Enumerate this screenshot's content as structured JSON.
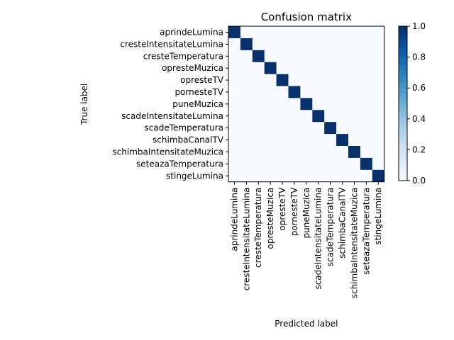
{
  "chart_data": {
    "type": "heatmap",
    "title": "Confusion matrix",
    "xlabel": "Predicted label",
    "ylabel": "True label",
    "labels": [
      "aprindeLumina",
      "cresteIntensitateLumina",
      "cresteTemperatura",
      "opresteMuzica",
      "opresteTV",
      "pornesteTV",
      "puneMuzica",
      "scadeIntensitateLumina",
      "scadeTemperatura",
      "schimbaCanalTV",
      "schimbaIntensitateMuzica",
      "seteazaTemperatura",
      "stingeLumina"
    ],
    "matrix": [
      [
        1,
        0,
        0,
        0,
        0,
        0,
        0,
        0,
        0,
        0,
        0,
        0,
        0
      ],
      [
        0,
        1,
        0,
        0,
        0,
        0,
        0,
        0,
        0,
        0,
        0,
        0,
        0
      ],
      [
        0,
        0,
        1,
        0,
        0,
        0,
        0,
        0,
        0,
        0,
        0,
        0,
        0
      ],
      [
        0,
        0,
        0,
        1,
        0,
        0,
        0,
        0,
        0,
        0,
        0,
        0,
        0
      ],
      [
        0,
        0,
        0,
        0,
        1,
        0,
        0,
        0,
        0,
        0,
        0,
        0,
        0
      ],
      [
        0,
        0,
        0,
        0,
        0,
        1,
        0,
        0,
        0,
        0,
        0,
        0,
        0
      ],
      [
        0,
        0,
        0,
        0,
        0,
        0,
        1,
        0,
        0,
        0,
        0,
        0,
        0
      ],
      [
        0,
        0,
        0,
        0,
        0,
        0,
        0,
        1,
        0,
        0,
        0,
        0,
        0
      ],
      [
        0,
        0,
        0,
        0,
        0,
        0,
        0,
        0,
        1,
        0,
        0,
        0,
        0
      ],
      [
        0,
        0,
        0,
        0,
        0,
        0,
        0,
        0,
        0,
        1,
        0,
        0,
        0
      ],
      [
        0,
        0,
        0,
        0,
        0,
        0,
        0,
        0,
        0,
        0,
        1,
        0,
        0
      ],
      [
        0,
        0,
        0,
        0,
        0,
        0,
        0,
        0,
        0,
        0,
        0,
        1,
        0
      ],
      [
        0,
        0,
        0,
        0,
        0,
        0,
        0,
        0,
        0,
        0,
        0,
        0,
        1
      ]
    ],
    "colormap": "Blues",
    "colorbar": {
      "range": [
        0,
        1
      ],
      "ticks": [
        "0.0",
        "0.2",
        "0.4",
        "0.6",
        "0.8",
        "1.0"
      ]
    },
    "colors": {
      "low": "#f7fbff",
      "high": "#08306b"
    }
  }
}
